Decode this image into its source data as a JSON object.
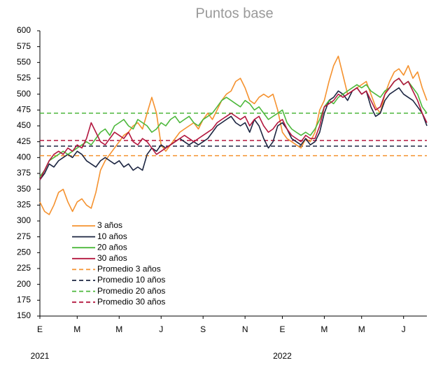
{
  "chart_data": {
    "type": "line",
    "title": "Puntos base",
    "categories": [
      "E",
      null,
      null,
      null,
      null,
      null,
      null,
      null,
      "M",
      null,
      null,
      null,
      null,
      null,
      null,
      null,
      null,
      "M",
      null,
      null,
      null,
      null,
      null,
      null,
      null,
      null,
      "J",
      null,
      null,
      null,
      null,
      null,
      null,
      null,
      null,
      "S",
      null,
      null,
      null,
      null,
      null,
      null,
      null,
      null,
      "N",
      null,
      null,
      null,
      null,
      null,
      null,
      null,
      "E",
      null,
      null,
      null,
      null,
      null,
      null,
      null,
      null,
      "M",
      null,
      null,
      null,
      null,
      null,
      null,
      null,
      "M",
      null,
      null,
      null,
      null,
      null,
      null,
      null,
      null,
      "J",
      null,
      null,
      null,
      null,
      null
    ],
    "x_groups": [
      "2021",
      null,
      null,
      null,
      null,
      null,
      null,
      null,
      null,
      null,
      null,
      null,
      null,
      null,
      null,
      null,
      null,
      null,
      null,
      null,
      null,
      null,
      null,
      null,
      null,
      null,
      null,
      null,
      null,
      null,
      null,
      null,
      null,
      null,
      null,
      null,
      null,
      null,
      null,
      null,
      null,
      null,
      null,
      null,
      null,
      null,
      null,
      null,
      null,
      null,
      null,
      null,
      "2022",
      null,
      null,
      null,
      null,
      null,
      null,
      null,
      null,
      null,
      null,
      null,
      null,
      null,
      null,
      null,
      null,
      null,
      null,
      null,
      null,
      null,
      null,
      null,
      null,
      null,
      null,
      null,
      null,
      null,
      null,
      null
    ],
    "series": [
      {
        "name": "3 años",
        "color": "#f5922f",
        "values": [
          330,
          315,
          310,
          325,
          345,
          350,
          330,
          315,
          330,
          335,
          325,
          320,
          345,
          380,
          395,
          405,
          415,
          425,
          435,
          440,
          450,
          455,
          445,
          470,
          495,
          470,
          420,
          410,
          420,
          430,
          440,
          445,
          450,
          455,
          445,
          460,
          470,
          460,
          475,
          490,
          500,
          505,
          520,
          525,
          510,
          490,
          485,
          495,
          500,
          495,
          500,
          475,
          440,
          430,
          425,
          420,
          415,
          430,
          425,
          440,
          475,
          490,
          520,
          545,
          560,
          530,
          500,
          505,
          510,
          515,
          520,
          500,
          480,
          470,
          500,
          520,
          535,
          540,
          530,
          545,
          525,
          535,
          510,
          490
        ]
      },
      {
        "name": "10 años",
        "color": "#1c2541",
        "values": [
          365,
          375,
          390,
          385,
          395,
          400,
          405,
          400,
          410,
          405,
          395,
          390,
          385,
          395,
          400,
          395,
          390,
          395,
          385,
          390,
          380,
          385,
          380,
          405,
          415,
          410,
          420,
          415,
          420,
          425,
          430,
          425,
          420,
          425,
          420,
          425,
          430,
          440,
          450,
          455,
          460,
          465,
          455,
          450,
          455,
          440,
          460,
          450,
          430,
          415,
          425,
          450,
          455,
          445,
          430,
          425,
          420,
          430,
          420,
          425,
          440,
          470,
          490,
          495,
          505,
          500,
          490,
          505,
          510,
          500,
          505,
          480,
          465,
          470,
          490,
          500,
          505,
          510,
          500,
          495,
          490,
          480,
          470,
          450
        ]
      },
      {
        "name": "20 años",
        "color": "#4db83c",
        "values": [
          370,
          380,
          395,
          400,
          405,
          410,
          405,
          410,
          415,
          420,
          425,
          420,
          430,
          440,
          445,
          435,
          450,
          455,
          460,
          450,
          445,
          460,
          455,
          450,
          440,
          445,
          455,
          450,
          460,
          465,
          455,
          460,
          465,
          455,
          450,
          460,
          465,
          470,
          480,
          490,
          495,
          490,
          485,
          480,
          490,
          485,
          475,
          480,
          470,
          460,
          465,
          470,
          475,
          455,
          445,
          440,
          435,
          440,
          435,
          445,
          460,
          480,
          490,
          485,
          495,
          500,
          505,
          510,
          515,
          510,
          515,
          505,
          500,
          495,
          505,
          510,
          520,
          525,
          515,
          520,
          510,
          500,
          480,
          470
        ]
      },
      {
        "name": "30 años",
        "color": "#b3173f",
        "values": [
          365,
          380,
          395,
          405,
          410,
          405,
          415,
          410,
          420,
          415,
          430,
          455,
          440,
          425,
          420,
          430,
          440,
          435,
          430,
          440,
          425,
          420,
          430,
          425,
          415,
          405,
          410,
          415,
          420,
          425,
          430,
          435,
          430,
          425,
          430,
          435,
          440,
          445,
          455,
          460,
          465,
          470,
          465,
          460,
          465,
          450,
          460,
          465,
          450,
          440,
          445,
          455,
          460,
          445,
          435,
          430,
          425,
          435,
          430,
          430,
          450,
          480,
          485,
          490,
          500,
          495,
          500,
          505,
          510,
          500,
          505,
          490,
          475,
          480,
          500,
          510,
          520,
          525,
          515,
          520,
          505,
          490,
          470,
          455
        ]
      }
    ],
    "reference_lines": [
      {
        "name": "Promedio 3 años",
        "color": "#f5922f",
        "value": 403
      },
      {
        "name": "Promedio 10 años",
        "color": "#1c2541",
        "value": 418
      },
      {
        "name": "Promedio 20 años",
        "color": "#4db83c",
        "value": 470
      },
      {
        "name": "Promedio 30 años",
        "color": "#b3173f",
        "value": 427
      }
    ],
    "ylim": [
      150,
      600
    ],
    "yticks": [
      150,
      175,
      200,
      225,
      250,
      275,
      300,
      325,
      350,
      375,
      400,
      425,
      450,
      475,
      500,
      525,
      550,
      575,
      600
    ],
    "grid": false,
    "legend": "lower-left"
  }
}
